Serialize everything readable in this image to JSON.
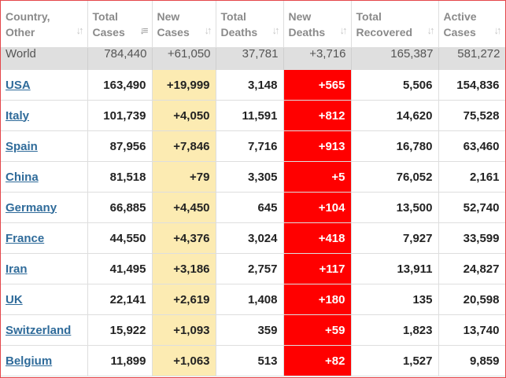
{
  "colors": {
    "new_cases_bg": "#fcebb2",
    "new_deaths_bg": "#ff0000",
    "world_row_bg": "#dfdfdf",
    "link": "#2f6b9a",
    "border": "#e4464a"
  },
  "headers": [
    {
      "line1": "Country,",
      "line2": "Other",
      "sort_icon": "sort-icon"
    },
    {
      "line1": "Total",
      "line2": "Cases",
      "sort_icon": "sort-desc-icon"
    },
    {
      "line1": "New",
      "line2": "Cases",
      "sort_icon": "sort-icon"
    },
    {
      "line1": "Total",
      "line2": "Deaths",
      "sort_icon": "sort-icon"
    },
    {
      "line1": "New",
      "line2": "Deaths",
      "sort_icon": "sort-icon"
    },
    {
      "line1": "Total",
      "line2": "Recovered",
      "sort_icon": "sort-icon"
    },
    {
      "line1": "Active",
      "line2": "Cases",
      "sort_icon": "sort-icon"
    }
  ],
  "world": {
    "country": "World",
    "total_cases": "784,440",
    "new_cases": "+61,050",
    "total_deaths": "37,781",
    "new_deaths": "+3,716",
    "total_recovered": "165,387",
    "active_cases": "581,272"
  },
  "rows": [
    {
      "country": "USA",
      "total_cases": "163,490",
      "new_cases": "+19,999",
      "total_deaths": "3,148",
      "new_deaths": "+565",
      "total_recovered": "5,506",
      "active_cases": "154,836"
    },
    {
      "country": "Italy",
      "total_cases": "101,739",
      "new_cases": "+4,050",
      "total_deaths": "11,591",
      "new_deaths": "+812",
      "total_recovered": "14,620",
      "active_cases": "75,528"
    },
    {
      "country": "Spain",
      "total_cases": "87,956",
      "new_cases": "+7,846",
      "total_deaths": "7,716",
      "new_deaths": "+913",
      "total_recovered": "16,780",
      "active_cases": "63,460"
    },
    {
      "country": "China",
      "total_cases": "81,518",
      "new_cases": "+79",
      "total_deaths": "3,305",
      "new_deaths": "+5",
      "total_recovered": "76,052",
      "active_cases": "2,161"
    },
    {
      "country": "Germany",
      "total_cases": "66,885",
      "new_cases": "+4,450",
      "total_deaths": "645",
      "new_deaths": "+104",
      "total_recovered": "13,500",
      "active_cases": "52,740"
    },
    {
      "country": "France",
      "total_cases": "44,550",
      "new_cases": "+4,376",
      "total_deaths": "3,024",
      "new_deaths": "+418",
      "total_recovered": "7,927",
      "active_cases": "33,599"
    },
    {
      "country": "Iran",
      "total_cases": "41,495",
      "new_cases": "+3,186",
      "total_deaths": "2,757",
      "new_deaths": "+117",
      "total_recovered": "13,911",
      "active_cases": "24,827"
    },
    {
      "country": "UK",
      "total_cases": "22,141",
      "new_cases": "+2,619",
      "total_deaths": "1,408",
      "new_deaths": "+180",
      "total_recovered": "135",
      "active_cases": "20,598"
    },
    {
      "country": "Switzerland",
      "total_cases": "15,922",
      "new_cases": "+1,093",
      "total_deaths": "359",
      "new_deaths": "+59",
      "total_recovered": "1,823",
      "active_cases": "13,740"
    },
    {
      "country": "Belgium",
      "total_cases": "11,899",
      "new_cases": "+1,063",
      "total_deaths": "513",
      "new_deaths": "+82",
      "total_recovered": "1,527",
      "active_cases": "9,859"
    }
  ]
}
